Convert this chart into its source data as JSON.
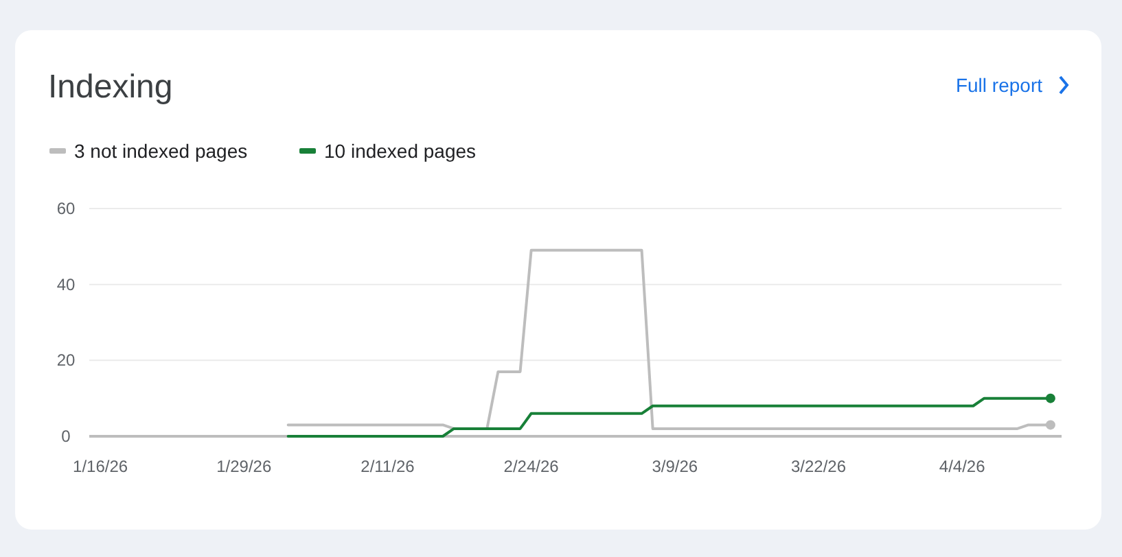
{
  "chart_data": {
    "type": "line",
    "title": "Indexing",
    "annotations": [
      "Full report"
    ],
    "legend": "top left",
    "grid": "y",
    "xlim": [
      "2026-01-15",
      "2026-04-13"
    ],
    "xticks": [
      {
        "value": "2026-01-16",
        "label": "1/16/26"
      },
      {
        "value": "2026-01-29",
        "label": "1/29/26"
      },
      {
        "value": "2026-02-11",
        "label": "2/11/26"
      },
      {
        "value": "2026-02-24",
        "label": "2/24/26"
      },
      {
        "value": "2026-03-09",
        "label": "3/9/26"
      },
      {
        "value": "2026-03-22",
        "label": "3/22/26"
      },
      {
        "value": "2026-04-04",
        "label": "4/4/26"
      }
    ],
    "ylim": [
      0,
      60
    ],
    "yticks": [
      0,
      20,
      40,
      60
    ],
    "series": [
      {
        "name": "3 not indexed pages",
        "color": "#bdbdbd",
        "x": [
          "2026-02-02",
          "2026-02-16",
          "2026-02-17",
          "2026-02-20",
          "2026-02-21",
          "2026-02-23",
          "2026-02-24",
          "2026-03-06",
          "2026-03-07",
          "2026-04-09",
          "2026-04-10",
          "2026-04-12"
        ],
        "values": [
          3,
          3,
          2,
          2,
          17,
          17,
          49,
          49,
          2,
          2,
          3,
          3
        ]
      },
      {
        "name": "10 indexed pages",
        "color": "#188038",
        "x": [
          "2026-02-02",
          "2026-02-16",
          "2026-02-17",
          "2026-02-23",
          "2026-02-24",
          "2026-03-06",
          "2026-03-07",
          "2026-04-05",
          "2026-04-06",
          "2026-04-12"
        ],
        "values": [
          0,
          0,
          2,
          2,
          6,
          6,
          8,
          8,
          10,
          10
        ]
      }
    ]
  }
}
